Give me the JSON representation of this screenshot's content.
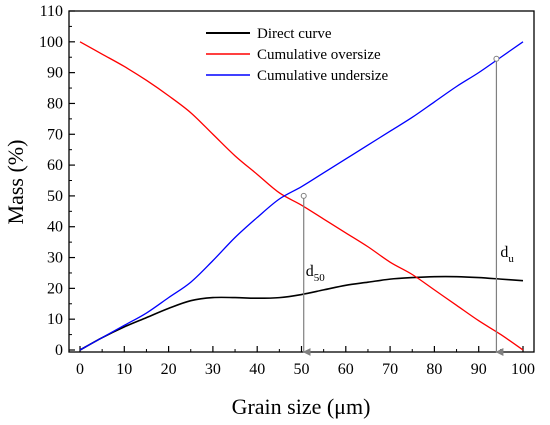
{
  "chart_data": {
    "type": "line",
    "title": "",
    "xlabel": "Grain size (μm)",
    "ylabel": "Mass (%)",
    "xlim": [
      0,
      100
    ],
    "ylim": [
      0,
      110
    ],
    "x_ticks": [
      0,
      10,
      20,
      30,
      40,
      50,
      60,
      70,
      80,
      90,
      100
    ],
    "y_ticks": [
      0,
      10,
      20,
      30,
      40,
      50,
      60,
      70,
      80,
      90,
      100,
      110
    ],
    "legend_position": "top-center",
    "grid": false,
    "series": [
      {
        "name": "Direct curve",
        "color": "#000000",
        "x": [
          0,
          5,
          10,
          15,
          20,
          25,
          30,
          35,
          40,
          45,
          50,
          55,
          60,
          65,
          70,
          75,
          80,
          85,
          90,
          95,
          100
        ],
        "y": [
          0,
          4,
          7.5,
          10.5,
          13.5,
          16,
          17,
          17,
          16.8,
          17,
          18,
          19.5,
          21,
          22,
          23,
          23.5,
          23.8,
          23.8,
          23.5,
          23,
          22.5
        ]
      },
      {
        "name": "Cumulative oversize",
        "color": "#ff0000",
        "x": [
          0,
          5,
          10,
          15,
          20,
          25,
          30,
          35,
          40,
          45,
          50,
          55,
          60,
          65,
          70,
          75,
          80,
          85,
          90,
          95,
          100
        ],
        "y": [
          100,
          96,
          92,
          87.5,
          82.5,
          77,
          70,
          63,
          57,
          51,
          47,
          42.5,
          38,
          33.5,
          28.5,
          24.5,
          19.5,
          14.5,
          9.5,
          5,
          0
        ]
      },
      {
        "name": "Cumulative undersize",
        "color": "#0000ff",
        "x": [
          0,
          5,
          10,
          15,
          20,
          25,
          30,
          35,
          40,
          45,
          50,
          55,
          60,
          65,
          70,
          75,
          80,
          85,
          90,
          95,
          100
        ],
        "y": [
          0,
          4,
          8,
          12,
          17,
          22,
          29,
          36.5,
          43,
          49,
          53,
          57.5,
          62,
          66.5,
          71,
          75.5,
          80.5,
          85.5,
          90,
          95,
          100
        ]
      }
    ],
    "annotations": [
      {
        "label": "d",
        "subscript": "50",
        "x": 50.5,
        "y": 50
      },
      {
        "label": "d",
        "subscript": "u",
        "x": 94,
        "y": 94.5
      }
    ]
  }
}
